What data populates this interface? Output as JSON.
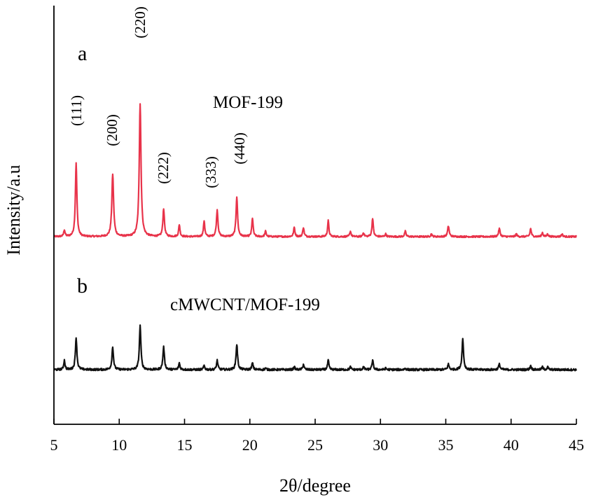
{
  "chart_data": {
    "type": "line",
    "xlabel": "2θ/degree",
    "ylabel": "Intensity/a.u",
    "xlim": [
      5,
      45
    ],
    "x_ticks": [
      5,
      10,
      15,
      20,
      25,
      30,
      35,
      40,
      45
    ],
    "x_tick_labels": [
      "5",
      "10",
      "15",
      "20",
      "25",
      "30",
      "35",
      "40",
      "45"
    ],
    "grid": false,
    "y_ticks_shown": false,
    "series": [
      {
        "name": "MOF-199",
        "panel_label": "a",
        "color": "#e8334a",
        "baseline": 1.0,
        "noise": 0.006,
        "peaks": [
          {
            "x": 5.8,
            "h": 0.05,
            "w": 0.06
          },
          {
            "x": 6.7,
            "h": 0.55,
            "w": 0.07
          },
          {
            "x": 9.5,
            "h": 0.47,
            "w": 0.08
          },
          {
            "x": 11.6,
            "h": 1.0,
            "w": 0.08
          },
          {
            "x": 13.4,
            "h": 0.21,
            "w": 0.07
          },
          {
            "x": 14.6,
            "h": 0.09,
            "w": 0.06
          },
          {
            "x": 16.5,
            "h": 0.12,
            "w": 0.06
          },
          {
            "x": 17.5,
            "h": 0.2,
            "w": 0.07
          },
          {
            "x": 19.0,
            "h": 0.3,
            "w": 0.07
          },
          {
            "x": 20.2,
            "h": 0.14,
            "w": 0.06
          },
          {
            "x": 21.2,
            "h": 0.04,
            "w": 0.06
          },
          {
            "x": 23.4,
            "h": 0.07,
            "w": 0.06
          },
          {
            "x": 24.1,
            "h": 0.07,
            "w": 0.06
          },
          {
            "x": 26.0,
            "h": 0.12,
            "w": 0.06
          },
          {
            "x": 27.7,
            "h": 0.04,
            "w": 0.06
          },
          {
            "x": 28.7,
            "h": 0.03,
            "w": 0.06
          },
          {
            "x": 29.4,
            "h": 0.14,
            "w": 0.06
          },
          {
            "x": 30.4,
            "h": 0.02,
            "w": 0.06
          },
          {
            "x": 31.9,
            "h": 0.04,
            "w": 0.06
          },
          {
            "x": 33.9,
            "h": 0.02,
            "w": 0.06
          },
          {
            "x": 35.2,
            "h": 0.08,
            "w": 0.07
          },
          {
            "x": 39.1,
            "h": 0.06,
            "w": 0.07
          },
          {
            "x": 40.4,
            "h": 0.02,
            "w": 0.06
          },
          {
            "x": 41.5,
            "h": 0.06,
            "w": 0.06
          },
          {
            "x": 42.4,
            "h": 0.03,
            "w": 0.06
          },
          {
            "x": 42.8,
            "h": 0.02,
            "w": 0.06
          },
          {
            "x": 43.9,
            "h": 0.02,
            "w": 0.06
          }
        ]
      },
      {
        "name": "cMWCNT/MOF-199",
        "panel_label": "b",
        "color": "#111111",
        "baseline": 0.0,
        "noise": 0.008,
        "peaks": [
          {
            "x": 5.8,
            "h": 0.07,
            "w": 0.06
          },
          {
            "x": 6.7,
            "h": 0.24,
            "w": 0.07
          },
          {
            "x": 9.5,
            "h": 0.17,
            "w": 0.07
          },
          {
            "x": 11.6,
            "h": 0.33,
            "w": 0.07
          },
          {
            "x": 13.4,
            "h": 0.17,
            "w": 0.07
          },
          {
            "x": 14.6,
            "h": 0.05,
            "w": 0.06
          },
          {
            "x": 16.5,
            "h": 0.03,
            "w": 0.06
          },
          {
            "x": 17.5,
            "h": 0.07,
            "w": 0.06
          },
          {
            "x": 19.0,
            "h": 0.19,
            "w": 0.07
          },
          {
            "x": 20.2,
            "h": 0.05,
            "w": 0.06
          },
          {
            "x": 21.2,
            "h": 0.01,
            "w": 0.06
          },
          {
            "x": 23.4,
            "h": 0.02,
            "w": 0.06
          },
          {
            "x": 24.1,
            "h": 0.04,
            "w": 0.06
          },
          {
            "x": 26.0,
            "h": 0.07,
            "w": 0.06
          },
          {
            "x": 27.7,
            "h": 0.02,
            "w": 0.06
          },
          {
            "x": 28.7,
            "h": 0.02,
            "w": 0.06
          },
          {
            "x": 29.4,
            "h": 0.07,
            "w": 0.06
          },
          {
            "x": 30.4,
            "h": 0.01,
            "w": 0.06
          },
          {
            "x": 31.9,
            "h": 0.01,
            "w": 0.06
          },
          {
            "x": 35.2,
            "h": 0.04,
            "w": 0.07
          },
          {
            "x": 36.3,
            "h": 0.23,
            "w": 0.07
          },
          {
            "x": 39.1,
            "h": 0.04,
            "w": 0.07
          },
          {
            "x": 41.5,
            "h": 0.03,
            "w": 0.06
          },
          {
            "x": 42.4,
            "h": 0.02,
            "w": 0.06
          },
          {
            "x": 42.8,
            "h": 0.02,
            "w": 0.06
          }
        ]
      }
    ],
    "annotations": [
      {
        "text": "(111)",
        "x": 6.7
      },
      {
        "text": "(200)",
        "x": 9.5
      },
      {
        "text": "(220)",
        "x": 11.6
      },
      {
        "text": "(222)",
        "x": 13.4
      },
      {
        "text": "(333)",
        "x": 17.5
      },
      {
        "text": "(440)",
        "x": 19.0
      }
    ]
  }
}
